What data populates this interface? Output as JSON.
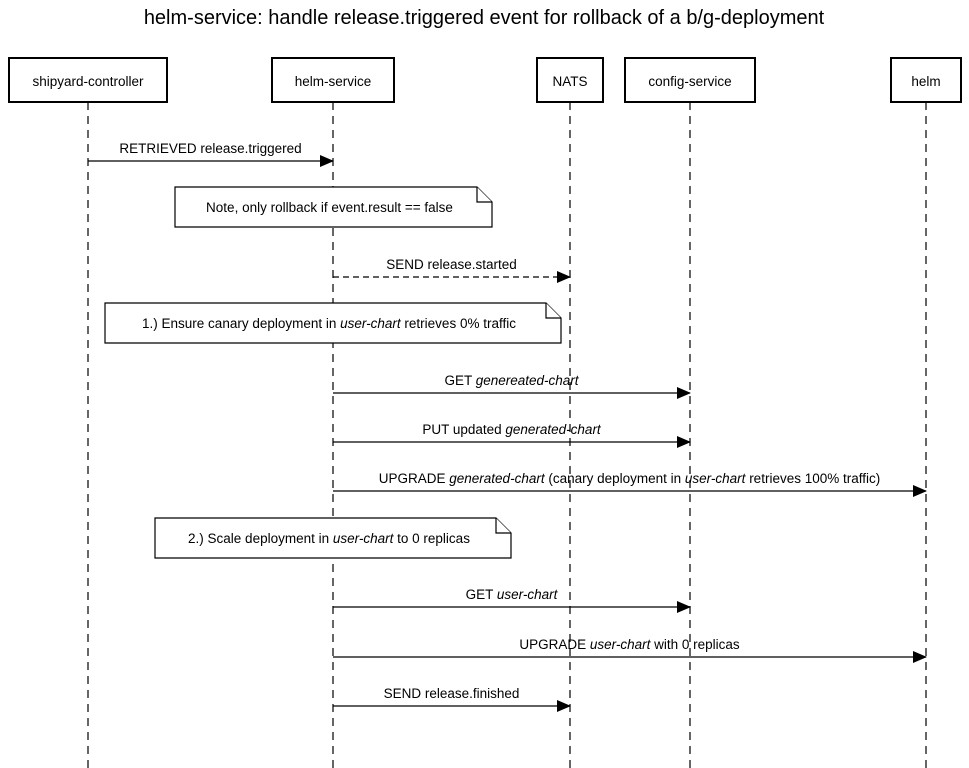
{
  "title": "helm-service: handle release.triggered event for rollback of a b/g-deployment",
  "actors": [
    {
      "id": "shipyard-controller",
      "label": "shipyard-controller"
    },
    {
      "id": "helm-service",
      "label": "helm-service"
    },
    {
      "id": "nats",
      "label": "NATS"
    },
    {
      "id": "config-service",
      "label": "config-service"
    },
    {
      "id": "helm",
      "label": "helm"
    }
  ],
  "steps": [
    {
      "kind": "message",
      "from": "shipyard-controller",
      "to": "helm-service",
      "style": "solid",
      "label": [
        {
          "text": "RETRIEVED release.triggered"
        }
      ]
    },
    {
      "kind": "note",
      "span": [
        "shipyard-controller",
        "helm-service"
      ],
      "label": [
        {
          "text": "Note, only rollback if event.result == false"
        }
      ]
    },
    {
      "kind": "message",
      "from": "helm-service",
      "to": "nats",
      "style": "dashed",
      "label": [
        {
          "text": "SEND release.started"
        }
      ]
    },
    {
      "kind": "note",
      "span": [
        "shipyard-controller",
        "nats"
      ],
      "label": [
        {
          "text": "1.) Ensure canary deployment in "
        },
        {
          "text": "user-chart",
          "italic": true
        },
        {
          "text": " retrieves 0% traffic"
        }
      ]
    },
    {
      "kind": "message",
      "from": "helm-service",
      "to": "config-service",
      "style": "solid",
      "label": [
        {
          "text": "GET "
        },
        {
          "text": "genereated-chart",
          "italic": true
        }
      ]
    },
    {
      "kind": "message",
      "from": "helm-service",
      "to": "config-service",
      "style": "solid",
      "label": [
        {
          "text": "PUT updated "
        },
        {
          "text": "generated-chart",
          "italic": true
        }
      ]
    },
    {
      "kind": "message",
      "from": "helm-service",
      "to": "helm",
      "style": "solid",
      "label": [
        {
          "text": "UPGRADE "
        },
        {
          "text": "generated-chart",
          "italic": true
        },
        {
          "text": " (canary deployment in "
        },
        {
          "text": "user-chart",
          "italic": true
        },
        {
          "text": " retrieves 100% traffic)"
        }
      ]
    },
    {
      "kind": "note",
      "span": [
        "shipyard-controller",
        "helm-service"
      ],
      "label": [
        {
          "text": "2.) Scale deployment in "
        },
        {
          "text": "user-chart",
          "italic": true
        },
        {
          "text": " to 0 replicas"
        }
      ]
    },
    {
      "kind": "message",
      "from": "helm-service",
      "to": "config-service",
      "style": "solid",
      "label": [
        {
          "text": "GET "
        },
        {
          "text": "user-chart",
          "italic": true
        }
      ]
    },
    {
      "kind": "message",
      "from": "helm-service",
      "to": "helm",
      "style": "solid",
      "label": [
        {
          "text": "UPGRADE "
        },
        {
          "text": "user-chart",
          "italic": true
        },
        {
          "text": " with 0 replicas"
        }
      ]
    },
    {
      "kind": "message",
      "from": "helm-service",
      "to": "nats",
      "style": "solid",
      "label": [
        {
          "text": "SEND release.finished"
        }
      ]
    }
  ]
}
